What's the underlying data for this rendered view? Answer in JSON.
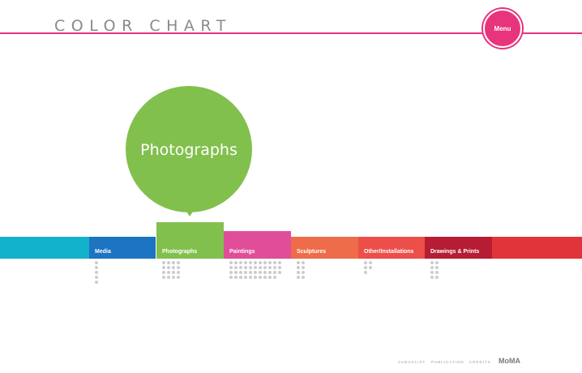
{
  "header": {
    "title": "COLOR CHART",
    "menu_label": "Menu",
    "accent_color": "#e7347d"
  },
  "bubble": {
    "label": "Photographs",
    "color": "#82c04e"
  },
  "bar": {
    "lead_color": "#12b2cc",
    "tail_color": "#e1343a"
  },
  "categories": [
    {
      "label": "Media",
      "color": "#1d74c2",
      "dot_count": 5
    },
    {
      "label": "Photographs",
      "color": "#82c04e",
      "dot_count": 16
    },
    {
      "label": "Paintings",
      "color": "#e04d98",
      "dot_count": 43
    },
    {
      "label": "Sculptures",
      "color": "#ee6c4a",
      "dot_count": 8
    },
    {
      "label": "Other/Installations",
      "color": "#ec4f4a",
      "dot_count": 5
    },
    {
      "label": "Drawings & Prints",
      "color": "#b61c34",
      "dot_count": 8
    }
  ],
  "selected_category": "Photographs",
  "footer": {
    "links": [
      "CHECKLIST",
      "PUBLICATION",
      "CREDITS"
    ],
    "logo": "MoMA"
  }
}
